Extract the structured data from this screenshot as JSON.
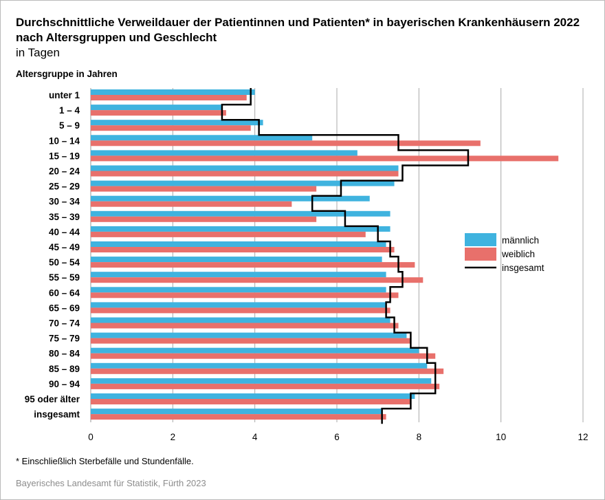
{
  "title": "Durchschnittliche Verweildauer der Patientinnen und Patienten* in bayerischen Krankenhäusern 2022 nach Altersgruppen und Geschlecht",
  "subtitle": "in Tagen",
  "footnote": "* Einschließlich Sterbefälle und Stundenfälle.",
  "source": "Bayerisches Landesamt für Statistik, Fürth 2023",
  "chart_data": {
    "type": "bar",
    "orientation": "horizontal",
    "ylabel": "Altersgruppe in Jahren",
    "categories": [
      "unter 1",
      "1 – 4",
      "5 – 9",
      "10 – 14",
      "15 – 19",
      "20 – 24",
      "25 – 29",
      "30 – 34",
      "35 – 39",
      "40 – 44",
      "45 – 49",
      "50 – 54",
      "55 – 59",
      "60 – 64",
      "65 – 69",
      "70 – 74",
      "75 – 79",
      "80 – 84",
      "85 – 89",
      "90 – 94",
      "95 oder älter",
      "insgesamt"
    ],
    "series": [
      {
        "name": "männlich",
        "kind": "bar",
        "color": "#3fb3df",
        "values": [
          4.0,
          3.2,
          4.2,
          5.4,
          6.5,
          7.5,
          7.4,
          6.8,
          7.3,
          7.3,
          7.2,
          7.1,
          7.2,
          7.2,
          7.2,
          7.3,
          7.7,
          8.0,
          8.2,
          8.3,
          7.9,
          7.1
        ]
      },
      {
        "name": "weiblich",
        "kind": "bar",
        "color": "#e8706b",
        "values": [
          3.8,
          3.3,
          3.9,
          9.5,
          11.4,
          7.5,
          5.5,
          4.9,
          5.5,
          6.7,
          7.4,
          7.9,
          8.1,
          7.5,
          7.3,
          7.5,
          7.8,
          8.4,
          8.6,
          8.5,
          7.8,
          7.2
        ]
      },
      {
        "name": "insgesamt",
        "kind": "step-line",
        "color": "#000000",
        "values": [
          3.9,
          3.2,
          4.1,
          7.5,
          9.2,
          7.6,
          6.1,
          5.4,
          6.2,
          7.0,
          7.3,
          7.5,
          7.6,
          7.3,
          7.2,
          7.4,
          7.8,
          8.2,
          8.4,
          8.4,
          7.8,
          7.1
        ]
      }
    ],
    "xlim": [
      0,
      12
    ],
    "xticks": [
      "0",
      "2",
      "4",
      "6",
      "8",
      "10",
      "12"
    ],
    "grid": "vertical",
    "legend_position": "right"
  }
}
